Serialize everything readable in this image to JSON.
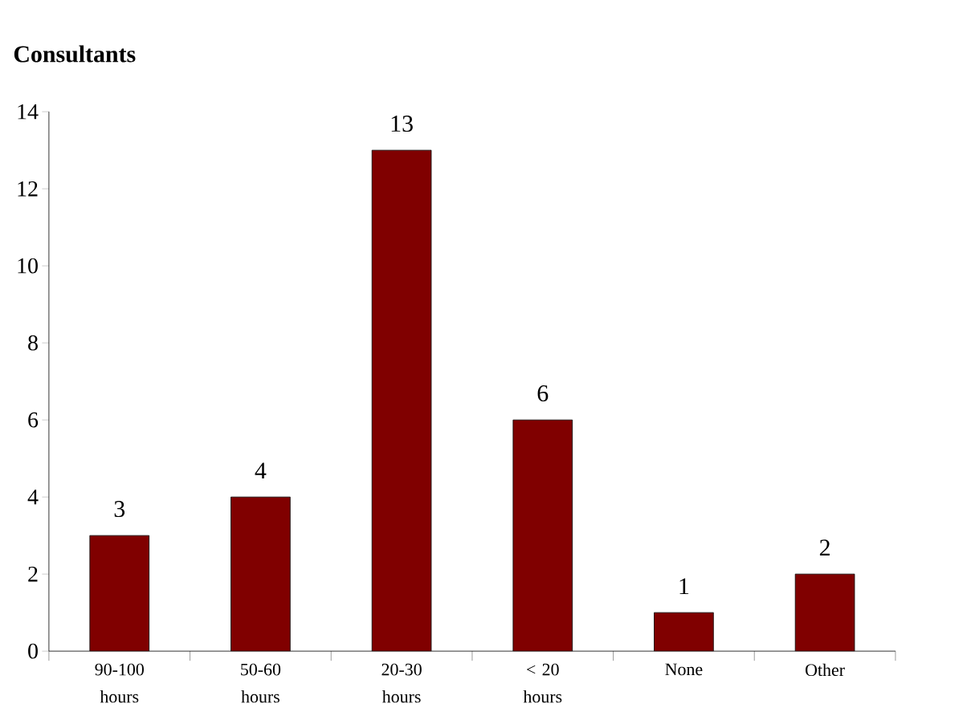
{
  "chart_data": {
    "type": "bar",
    "title": "Consultants",
    "categories": [
      "90-100 hours",
      "50-60 hours",
      "20-30 hours",
      "< 20 hours",
      "None",
      "Other"
    ],
    "values": [
      3,
      4,
      13,
      6,
      1,
      2
    ],
    "color": "#800000",
    "ylim": [
      0,
      14
    ],
    "yticks": [
      0,
      2,
      4,
      6,
      8,
      10,
      12,
      14
    ],
    "data_labels": true
  }
}
